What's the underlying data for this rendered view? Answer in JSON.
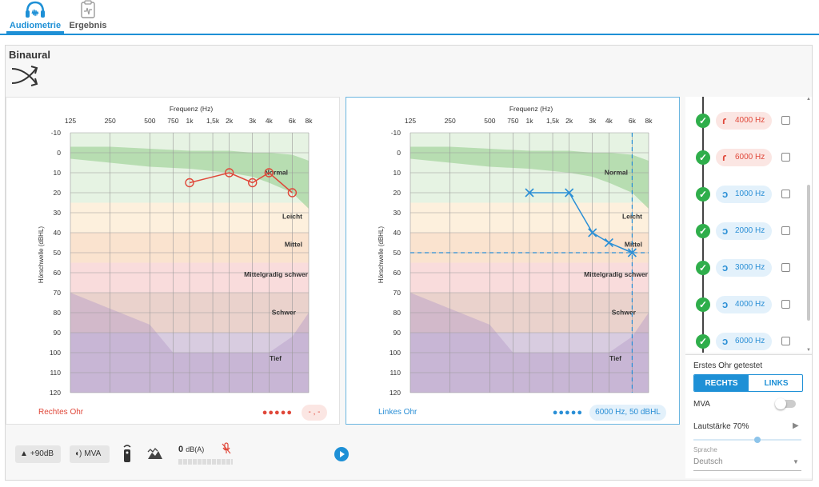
{
  "tabs": [
    {
      "label": "Audiometrie",
      "active": true,
      "icon": "headphones-icon"
    },
    {
      "label": "Ergebnis",
      "active": false,
      "icon": "clipboard-icon"
    }
  ],
  "page_title": "Binaural",
  "binaural_icon": "crossing-arrows-icon",
  "audiogram_common": {
    "x_title": "Frequenz (Hz)",
    "y_title": "Hörschwelle (dBHL)",
    "x_ticks": [
      "125",
      "250",
      "500",
      "750",
      "1k",
      "1,5k",
      "2k",
      "3k",
      "4k",
      "6k",
      "8k"
    ],
    "x_freqs": [
      125,
      250,
      500,
      750,
      1000,
      1500,
      2000,
      3000,
      4000,
      6000,
      8000
    ],
    "y_ticks": [
      "-10",
      "0",
      "10",
      "20",
      "30",
      "40",
      "50",
      "60",
      "70",
      "80",
      "90",
      "100",
      "110",
      "120"
    ],
    "zones": [
      "Normal",
      "Leicht",
      "Mittel",
      "Mittelgradig schwer",
      "Schwer",
      "Tief"
    ],
    "zone_colors": [
      "#e6f3e3",
      "#fdf0dd",
      "#fae3cf",
      "#f9dcdc",
      "#ead2cc",
      "#d8cce0"
    ]
  },
  "left_ear": {
    "label": "Rechtes Ohr",
    "color": "#e0483a",
    "dots": "●●●●●",
    "pill": "- , -"
  },
  "right_ear": {
    "label": "Linkes Ohr",
    "color": "#2a8fd6",
    "dots": "●●●●●",
    "pill": "6000 Hz, 50 dBHL"
  },
  "chart_data": [
    {
      "type": "line",
      "title": "Rechtes Ohr",
      "xlabel": "Frequenz (Hz)",
      "ylabel": "Hörschwelle (dBHL)",
      "x_scale": "log",
      "ylim": [
        120,
        -10
      ],
      "series": [
        {
          "name": "Rechtes Ohr",
          "marker": "circle",
          "color": "#e0483a",
          "x": [
            1000,
            2000,
            3000,
            4000,
            6000
          ],
          "y": [
            15,
            10,
            15,
            10,
            20
          ]
        }
      ]
    },
    {
      "type": "line",
      "title": "Linkes Ohr",
      "xlabel": "Frequenz (Hz)",
      "ylabel": "Hörschwelle (dBHL)",
      "x_scale": "log",
      "ylim": [
        120,
        -10
      ],
      "series": [
        {
          "name": "Linkes Ohr",
          "marker": "cross",
          "color": "#2a8fd6",
          "x": [
            1000,
            2000,
            3000,
            4000,
            6000
          ],
          "y": [
            20,
            20,
            40,
            45,
            50
          ]
        }
      ],
      "crosshair": {
        "x": 6000,
        "y": 50
      }
    }
  ],
  "freq_list": [
    {
      "label": "4000 Hz",
      "side": "r",
      "ear": "ɾ"
    },
    {
      "label": "6000 Hz",
      "side": "r",
      "ear": "ɾ"
    },
    {
      "label": "1000 Hz",
      "side": "l",
      "ear": "ↄ"
    },
    {
      "label": "2000 Hz",
      "side": "l",
      "ear": "ↄ"
    },
    {
      "label": "3000 Hz",
      "side": "l",
      "ear": "ↄ"
    },
    {
      "label": "4000 Hz",
      "side": "l",
      "ear": "ↄ"
    },
    {
      "label": "6000 Hz",
      "side": "l",
      "ear": "ↄ"
    }
  ],
  "settings": {
    "first_ear_label": "Erstes Ohr getestet",
    "rechts": "RECHTS",
    "links": "LINKS",
    "mva": "MVA",
    "volume": "Lautstärke 70%",
    "language_label": "Sprache",
    "language_value": "Deutsch",
    "volume_percent": 70
  },
  "bottom": {
    "btn_90": "+90dB",
    "btn_mva": "MVA",
    "db_value": "0",
    "db_unit": "dB(A)"
  }
}
